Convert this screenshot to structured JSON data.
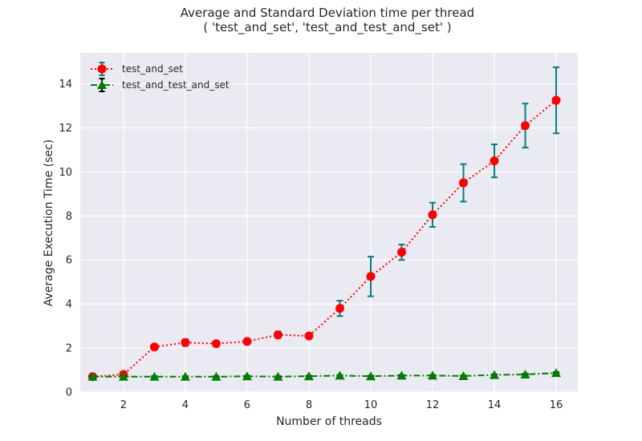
{
  "chart_data": {
    "type": "line",
    "title": "Average and Standard Deviation time per thread",
    "subtitle": "( 'test_and_set', 'test_and_test_and_set' )",
    "xlabel": "Number of threads",
    "ylabel": "Average Execution Time (sec)",
    "xlim": [
      0.6,
      16.7
    ],
    "ylim": [
      0,
      15.4
    ],
    "xticks": [
      2,
      4,
      6,
      8,
      10,
      12,
      14,
      16
    ],
    "yticks": [
      0,
      2,
      4,
      6,
      8,
      10,
      12,
      14
    ],
    "grid": true,
    "legend_position": "top-left",
    "x": [
      1,
      2,
      3,
      4,
      5,
      6,
      7,
      8,
      9,
      10,
      11,
      12,
      13,
      14,
      15,
      16
    ],
    "series": [
      {
        "name": "test_and_set",
        "color": "#ff0000",
        "errorbar_color": "#008080",
        "marker": "circle",
        "linestyle": "dotted",
        "values": [
          0.7,
          0.8,
          2.05,
          2.25,
          2.2,
          2.3,
          2.6,
          2.55,
          3.8,
          5.25,
          6.35,
          8.05,
          9.5,
          10.5,
          12.1,
          13.25
        ],
        "errors": [
          0.02,
          0.02,
          0.05,
          0.15,
          0.05,
          0.05,
          0.15,
          0.08,
          0.35,
          0.9,
          0.35,
          0.55,
          0.85,
          0.75,
          1.0,
          1.5
        ]
      },
      {
        "name": "test_and_test_and_set",
        "color": "#008000",
        "errorbar_color": "#000000",
        "marker": "triangle",
        "linestyle": "dashdot",
        "values": [
          0.7,
          0.7,
          0.7,
          0.7,
          0.7,
          0.72,
          0.7,
          0.72,
          0.75,
          0.72,
          0.75,
          0.75,
          0.73,
          0.78,
          0.8,
          0.87
        ],
        "errors": [
          0.02,
          0.02,
          0.02,
          0.02,
          0.02,
          0.02,
          0.02,
          0.02,
          0.02,
          0.02,
          0.02,
          0.02,
          0.02,
          0.02,
          0.03,
          0.03
        ]
      }
    ]
  }
}
